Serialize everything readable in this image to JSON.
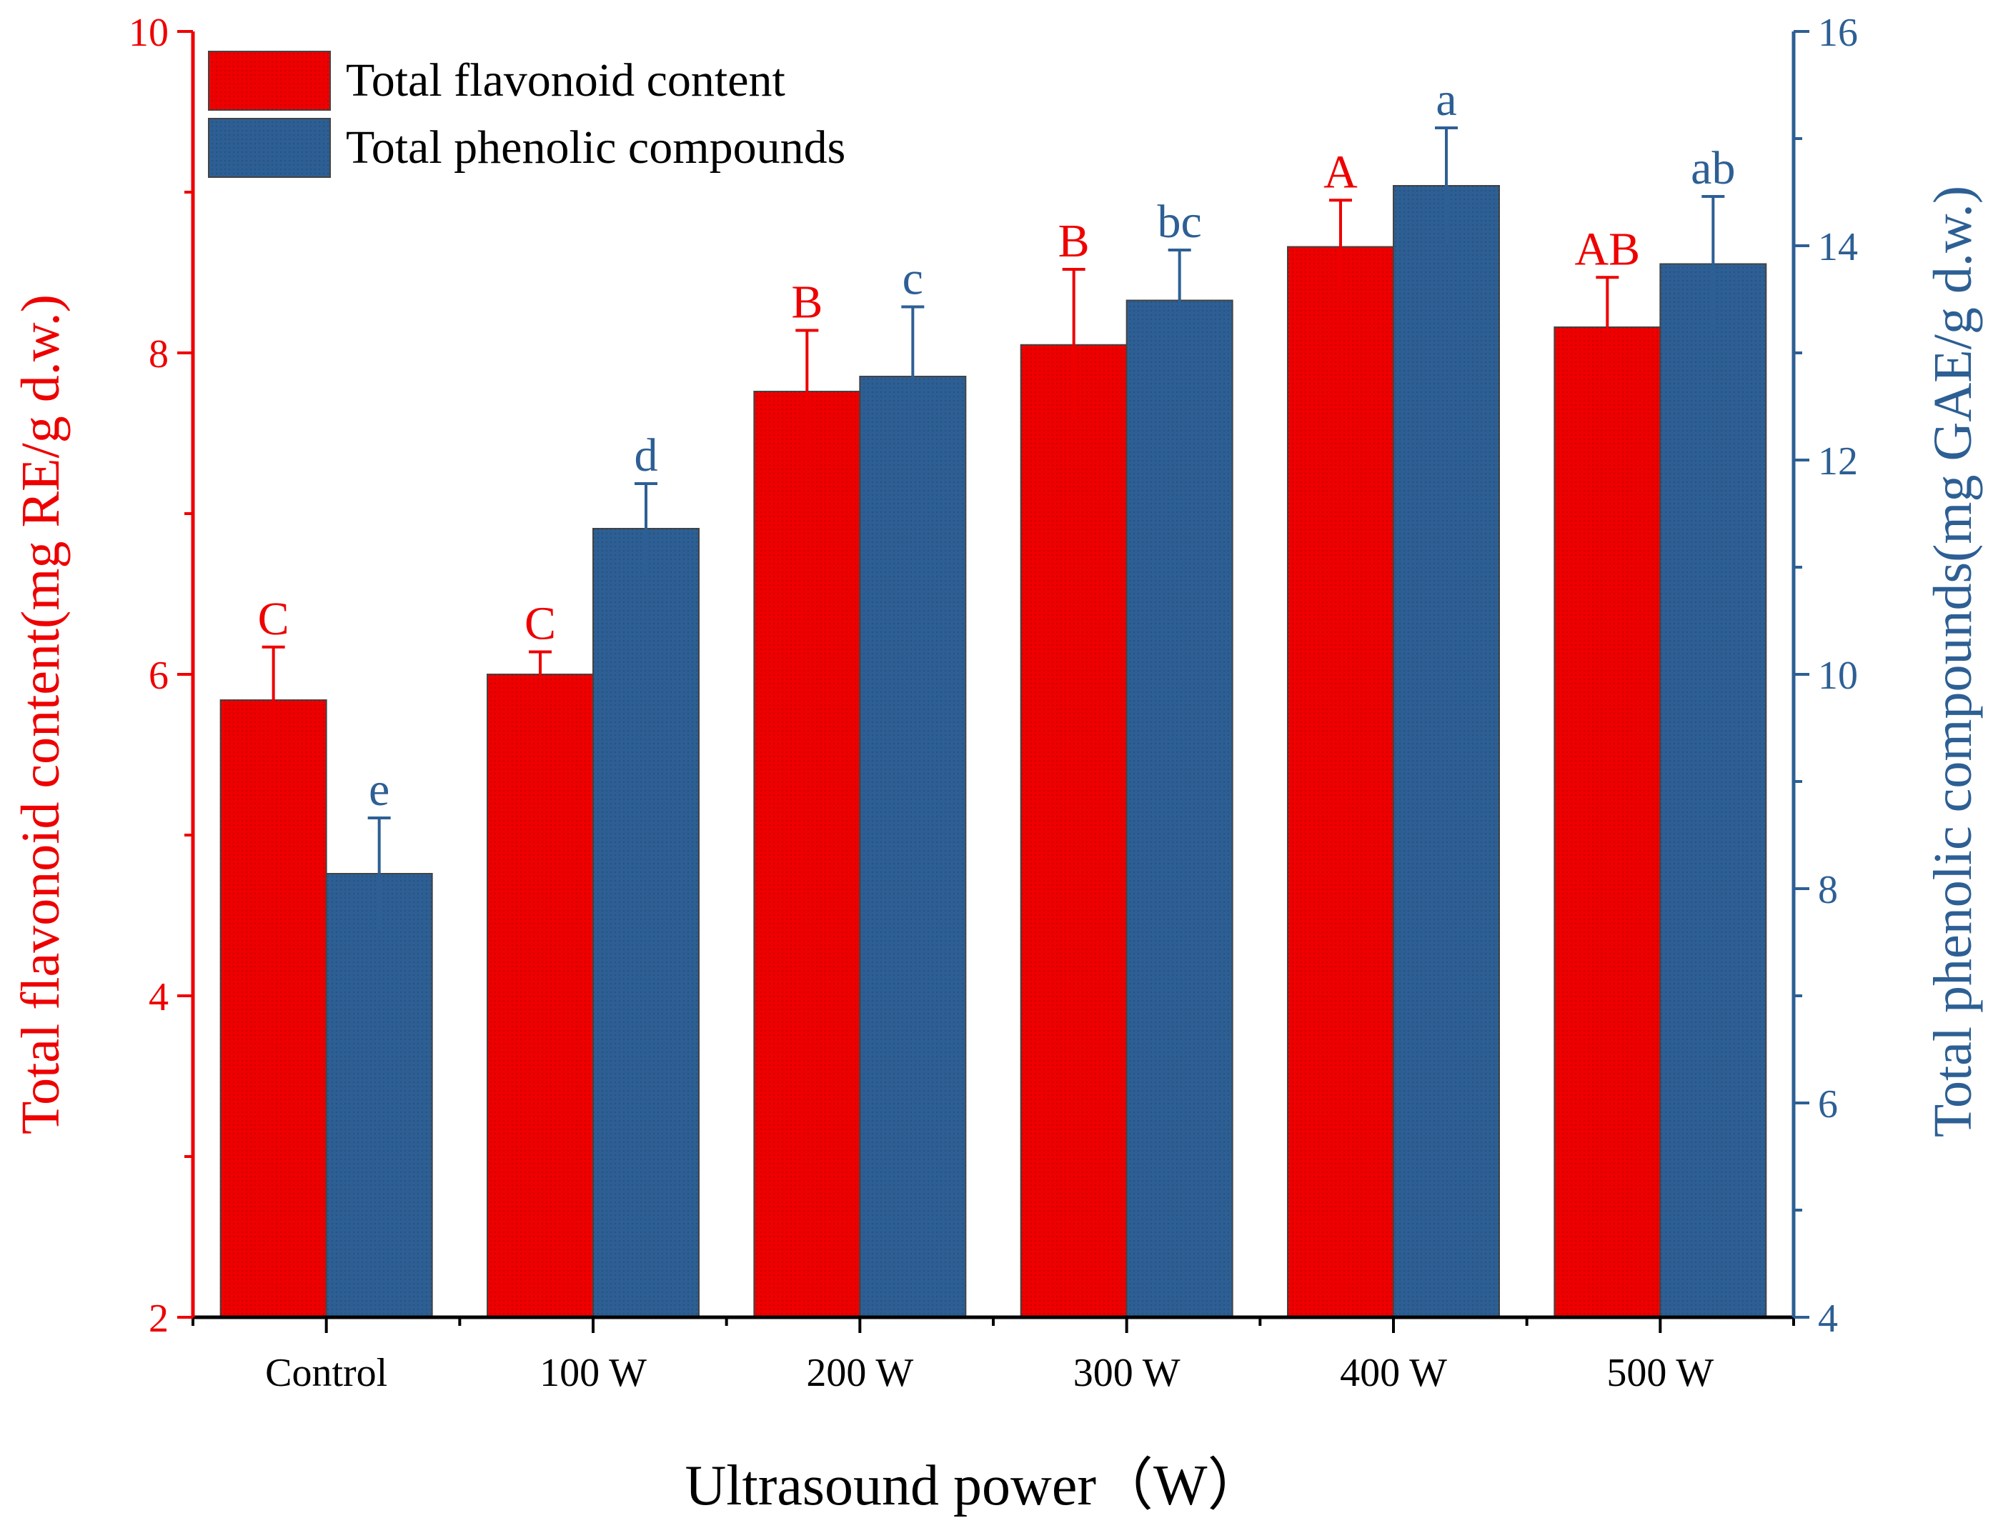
{
  "chart_data": {
    "type": "bar",
    "xlabel": "Ultrasound power（W）",
    "categories": [
      "Control",
      "100 W",
      "200 W",
      "300 W",
      "400 W",
      "500 W"
    ],
    "left_axis": {
      "label": "Total flavonoid content(mg RE/g d.w.)",
      "range": [
        2,
        10
      ],
      "ticks": [
        2,
        4,
        6,
        8,
        10
      ],
      "color": "#ee0000"
    },
    "right_axis": {
      "label": "Total phenolic compounds(mg GAE/g d.w.)",
      "range": [
        4,
        16
      ],
      "ticks": [
        4,
        6,
        8,
        10,
        12,
        14,
        16
      ],
      "color": "#2d5f94"
    },
    "legend_position": "top-left",
    "series": [
      {
        "name": "Total flavonoid content",
        "axis": "left",
        "color": "#ee0000",
        "values": [
          5.84,
          6.0,
          7.76,
          8.05,
          8.66,
          8.16
        ],
        "errors": [
          0.33,
          0.14,
          0.38,
          0.47,
          0.29,
          0.31
        ],
        "significance": [
          "C",
          "C",
          "B",
          "B",
          "A",
          "AB"
        ]
      },
      {
        "name": "Total phenolic compounds",
        "axis": "right",
        "color": "#2d5f94",
        "values": [
          8.14,
          11.36,
          12.78,
          13.49,
          14.56,
          13.83
        ],
        "errors": [
          0.52,
          0.42,
          0.65,
          0.47,
          0.54,
          0.63
        ],
        "significance": [
          "e",
          "d",
          "c",
          "bc",
          "a",
          "ab"
        ]
      }
    ]
  }
}
